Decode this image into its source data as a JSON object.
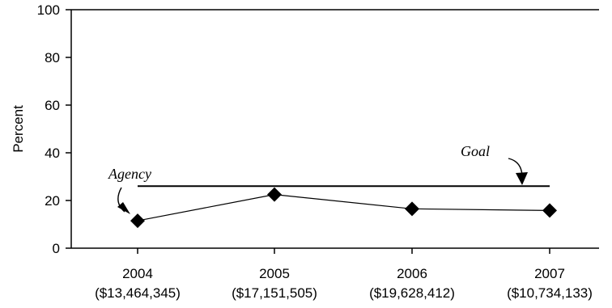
{
  "chart_data": {
    "type": "line",
    "title": "",
    "xlabel": "",
    "ylabel": "Percent",
    "ylim": [
      0,
      100
    ],
    "yticks": [
      "0",
      "20",
      "40",
      "60",
      "80",
      "100"
    ],
    "categories": [
      {
        "year": "2004",
        "amount": "($13,464,345)"
      },
      {
        "year": "2005",
        "amount": "($17,151,505)"
      },
      {
        "year": "2006",
        "amount": "($19,628,412)"
      },
      {
        "year": "2007",
        "amount": "($10,734,133)"
      }
    ],
    "series": [
      {
        "values": [
          11.5,
          22.5,
          16.5,
          15.8
        ]
      }
    ],
    "goal": 26,
    "annotations": {
      "agency": "Agency",
      "goal": "Goal"
    },
    "grid": false,
    "marker": "diamond",
    "colors": {
      "line": "#000000",
      "marker": "#000000"
    }
  }
}
